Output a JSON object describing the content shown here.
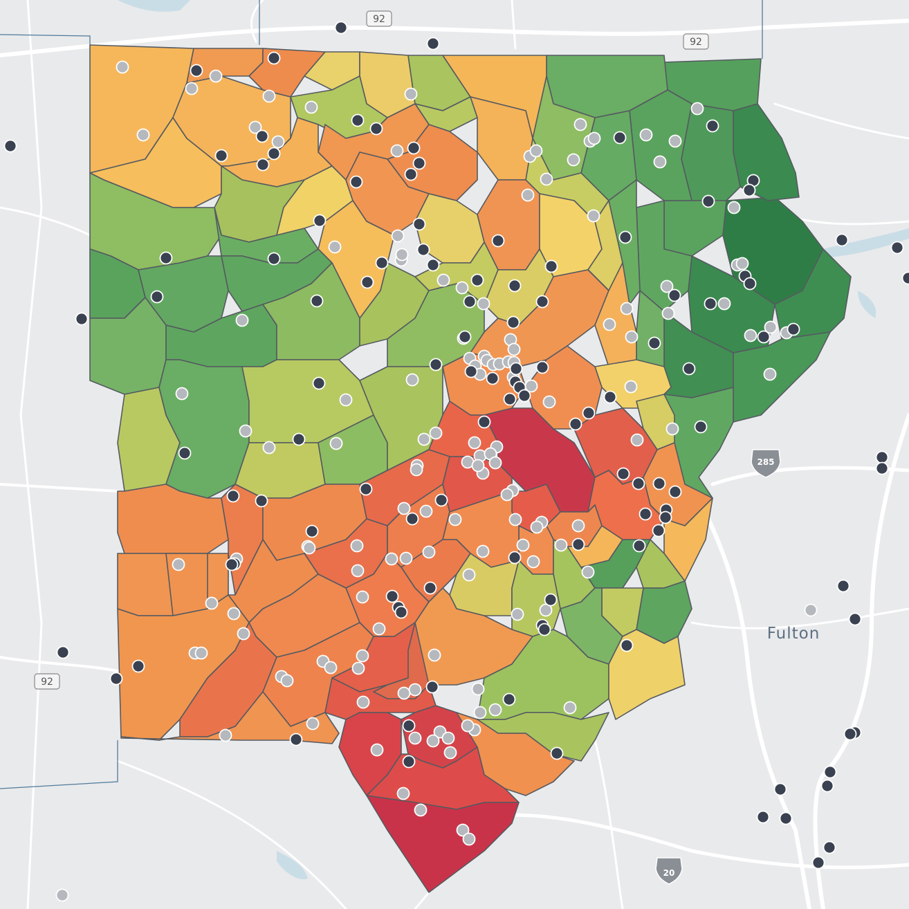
{
  "map": {
    "county_label": "Fulton",
    "route_shields": {
      "us92_top_left": "92",
      "us92_top_right": "92",
      "us92_left": "92",
      "i285": "285",
      "i20": "20"
    },
    "colors": {
      "background": "#e9eaec",
      "road": "#ffffff",
      "boundary": "#555a60",
      "dot_dark": "#3a4150",
      "dot_light": "#b5b8bc",
      "scale": [
        "#c8344a",
        "#e4594a",
        "#f08c4f",
        "#f6b85a",
        "#f0d468",
        "#c9cc62",
        "#a9c45e",
        "#7fb765",
        "#56a060",
        "#2f7d46"
      ]
    }
  }
}
